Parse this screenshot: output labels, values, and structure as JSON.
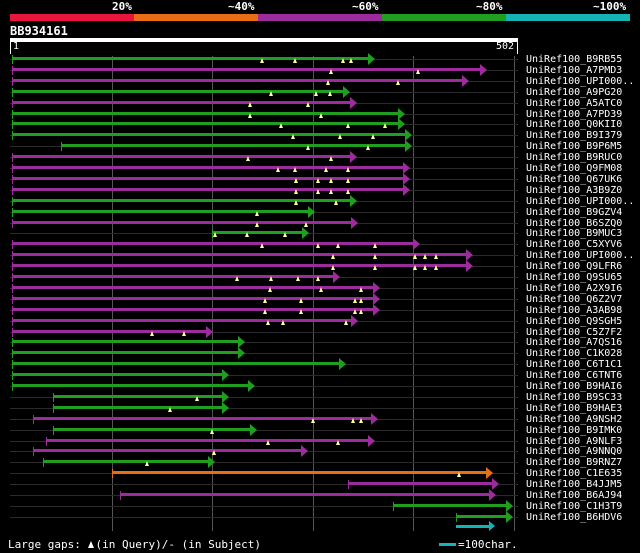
{
  "color_scale": {
    "segments": [
      {
        "color": "#e8163a"
      },
      {
        "color": "#e86e16"
      },
      {
        "color": "#9c2c9c"
      },
      {
        "color": "#1f9e1f"
      },
      {
        "color": "#14b4b4"
      }
    ],
    "labels": [
      "20%",
      "~40%",
      "~60%",
      "~80%",
      "~100%"
    ]
  },
  "query": {
    "name": "BB934161",
    "start": "1",
    "end": "502",
    "length": 502
  },
  "hits": [
    {
      "label": "UniRef100_B9RB55",
      "color": "#1f9e1f",
      "start": 1,
      "end": 355,
      "marks": [
        250,
        282,
        330,
        338
      ]
    },
    {
      "label": "UniRef100_A7PMD3",
      "color": "#9c2c9c",
      "start": 1,
      "end": 466,
      "marks": [
        318,
        405
      ]
    },
    {
      "label": "UniRef100_UPI000..",
      "color": "#9c2c9c",
      "start": 1,
      "end": 448,
      "marks": [
        315,
        385
      ]
    },
    {
      "label": "UniRef100_A9PG20",
      "color": "#1f9e1f",
      "start": 1,
      "end": 330,
      "marks": [
        258,
        303,
        317
      ]
    },
    {
      "label": "UniRef100_A5ATC0",
      "color": "#9c2c9c",
      "start": 1,
      "end": 337,
      "marks": [
        238,
        295
      ]
    },
    {
      "label": "UniRef100_A7PD39",
      "color": "#1f9e1f",
      "start": 1,
      "end": 385,
      "marks": [
        238,
        308
      ]
    },
    {
      "label": "UniRef100_Q0KII0",
      "color": "#1f9e1f",
      "start": 1,
      "end": 385,
      "marks": [
        268,
        335,
        372
      ]
    },
    {
      "label": "UniRef100_B9I379",
      "color": "#1f9e1f",
      "start": 1,
      "end": 392,
      "marks": [
        280,
        327,
        360
      ]
    },
    {
      "label": "UniRef100_B9P6M5",
      "color": "#1f9e1f",
      "start": 50,
      "end": 392,
      "marks": [
        295,
        355
      ]
    },
    {
      "label": "UniRef100_B9RUC0",
      "color": "#9c2c9c",
      "start": 1,
      "end": 337,
      "marks": [
        236,
        318
      ]
    },
    {
      "label": "UniRef100_Q9FM08",
      "color": "#9c2c9c",
      "start": 1,
      "end": 390,
      "marks": [
        265,
        282,
        313,
        335
      ]
    },
    {
      "label": "UniRef100_Q67UK6",
      "color": "#9c2c9c",
      "start": 1,
      "end": 390,
      "marks": [
        283,
        305,
        318,
        335
      ]
    },
    {
      "label": "UniRef100_A3B9Z0",
      "color": "#9c2c9c",
      "start": 1,
      "end": 390,
      "marks": [
        283,
        305,
        318,
        335
      ]
    },
    {
      "label": "UniRef100_UPI000..",
      "color": "#1f9e1f",
      "start": 1,
      "end": 337,
      "marks": [
        283,
        323
      ]
    },
    {
      "label": "UniRef100_B9GZV4",
      "color": "#1f9e1f",
      "start": 1,
      "end": 295,
      "marks": [
        245
      ]
    },
    {
      "label": "UniRef100_B6SZQ0",
      "color": "#9c2c9c",
      "start": 1,
      "end": 338,
      "marks": [
        245,
        293
      ]
    },
    {
      "label": "UniRef100_B9MUC3",
      "color": "#1f9e1f",
      "start": 200,
      "end": 289,
      "marks": [
        203,
        235,
        272
      ]
    },
    {
      "label": "UniRef100_C5XYV6",
      "color": "#9c2c9c",
      "start": 1,
      "end": 400,
      "marks": [
        250,
        305,
        325,
        362
      ]
    },
    {
      "label": "UniRef100_UPI000..",
      "color": "#9c2c9c",
      "start": 1,
      "end": 452,
      "marks": [
        320,
        362,
        402,
        412,
        422
      ]
    },
    {
      "label": "UniRef100_Q9LFR6",
      "color": "#9c2c9c",
      "start": 1,
      "end": 452,
      "marks": [
        320,
        362,
        402,
        412,
        422
      ]
    },
    {
      "label": "UniRef100_Q9SU65",
      "color": "#9c2c9c",
      "start": 1,
      "end": 320,
      "marks": [
        225,
        258,
        285,
        305
      ]
    },
    {
      "label": "UniRef100_A2X9I6",
      "color": "#9c2c9c",
      "start": 1,
      "end": 360,
      "marks": [
        257,
        308,
        348
      ]
    },
    {
      "label": "UniRef100_Q6Z2V7",
      "color": "#9c2c9c",
      "start": 1,
      "end": 360,
      "marks": [
        252,
        288,
        342,
        348
      ]
    },
    {
      "label": "UniRef100_A3AB98",
      "color": "#9c2c9c",
      "start": 1,
      "end": 360,
      "marks": [
        252,
        288,
        342,
        348
      ]
    },
    {
      "label": "UniRef100_Q9SGH5",
      "color": "#9c2c9c",
      "start": 1,
      "end": 338,
      "marks": [
        255,
        270,
        333
      ]
    },
    {
      "label": "UniRef100_C5Z7F2",
      "color": "#9c2c9c",
      "start": 1,
      "end": 194,
      "marks": [
        140,
        172
      ]
    },
    {
      "label": "UniRef100_A7QS16",
      "color": "#1f9e1f",
      "start": 1,
      "end": 226,
      "marks": []
    },
    {
      "label": "UniRef100_C1K028",
      "color": "#1f9e1f",
      "start": 1,
      "end": 226,
      "marks": []
    },
    {
      "label": "UniRef100_C6T1C1",
      "color": "#1f9e1f",
      "start": 1,
      "end": 326,
      "marks": []
    },
    {
      "label": "UniRef100_C6TNT6",
      "color": "#1f9e1f",
      "start": 1,
      "end": 210,
      "marks": []
    },
    {
      "label": "UniRef100_B9HAI6",
      "color": "#1f9e1f",
      "start": 1,
      "end": 236,
      "marks": []
    },
    {
      "label": "UniRef100_B9SC33",
      "color": "#1f9e1f",
      "start": 42,
      "end": 210,
      "marks": [
        185
      ]
    },
    {
      "label": "UniRef100_B9HAE3",
      "color": "#1f9e1f",
      "start": 42,
      "end": 210,
      "marks": [
        158
      ]
    },
    {
      "label": "UniRef100_A9NSH2",
      "color": "#9c2c9c",
      "start": 22,
      "end": 358,
      "marks": [
        300,
        340,
        348
      ]
    },
    {
      "label": "UniRef100_B9IMK0",
      "color": "#1f9e1f",
      "start": 42,
      "end": 238,
      "marks": [
        200
      ]
    },
    {
      "label": "UniRef100_A9NLF3",
      "color": "#9c2c9c",
      "start": 35,
      "end": 355,
      "marks": [
        255,
        325
      ]
    },
    {
      "label": "UniRef100_A9NNQ0",
      "color": "#9c2c9c",
      "start": 22,
      "end": 288,
      "marks": [
        202
      ]
    },
    {
      "label": "UniRef100_B9RNZ7",
      "color": "#1f9e1f",
      "start": 32,
      "end": 196,
      "marks": [
        135
      ]
    },
    {
      "label": "UniRef100_C1E635",
      "color": "#e86e16",
      "start": 100,
      "end": 472,
      "marks": [
        445
      ]
    },
    {
      "label": "UniRef100_B4JJM5",
      "color": "#9c2c9c",
      "start": 335,
      "end": 478,
      "marks": []
    },
    {
      "label": "UniRef100_B6AJ94",
      "color": "#9c2c9c",
      "start": 108,
      "end": 475,
      "marks": []
    },
    {
      "label": "UniRef100_C1H3T9",
      "color": "#1f9e1f",
      "start": 380,
      "end": 492,
      "marks": []
    },
    {
      "label": "UniRef100_B6HDV6",
      "color": "#1f9e1f",
      "start": 442,
      "end": 492,
      "marks": []
    }
  ],
  "extra_bars": [
    {
      "row": 43,
      "color": "#14b4b4",
      "start": 442,
      "end": 475
    }
  ],
  "legend": {
    "large_gaps_prefix": "Large gaps:",
    "in_query": "(in Query)/- (in Subject)",
    "scale_label": "=100char.",
    "scale_color": "#14b4b4"
  }
}
